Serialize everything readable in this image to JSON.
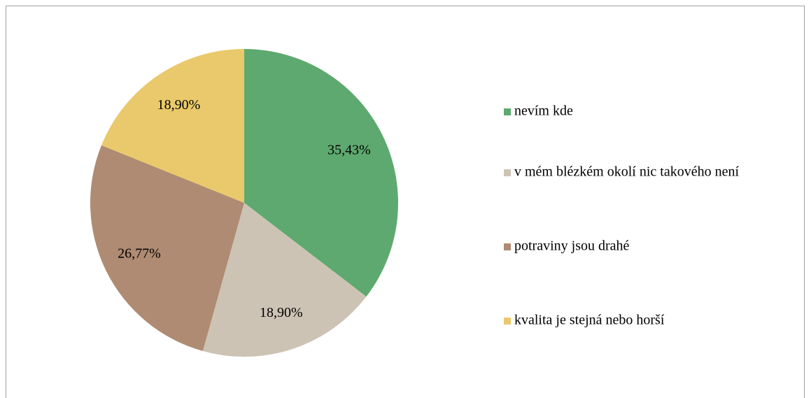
{
  "chart_data": {
    "type": "pie",
    "categories": [
      "nevím kde",
      "v mém blézkém okolí nic takového není",
      "potraviny jsou drahé",
      "kvalita je stejná nebo horší"
    ],
    "values": [
      35.43,
      18.9,
      26.77,
      18.9
    ],
    "value_labels": [
      "35,43%",
      "18,90%",
      "26,77%",
      "18,90%"
    ],
    "colors": [
      "#5ea96f",
      "#cdc3b4",
      "#ae8b72",
      "#e9c96b"
    ],
    "legend": "right"
  }
}
